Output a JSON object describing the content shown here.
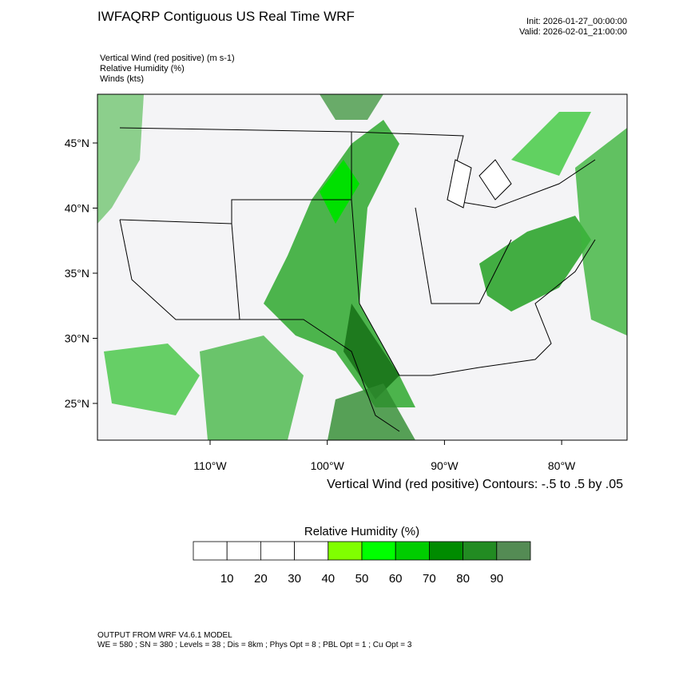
{
  "header": {
    "title": "IWFAQRP Contiguous US Real Time WRF",
    "init": "Init: 2026-01-27_00:00:00",
    "valid": "Valid: 2026-02-01_21:00:00"
  },
  "fields": [
    "Vertical Wind (red positive)   (m s-1)",
    "Relative Humidity   (%)",
    "Winds   (kts)"
  ],
  "map": {
    "lat_ticks": [
      {
        "value": 45,
        "label": "45°N"
      },
      {
        "value": 40,
        "label": "40°N"
      },
      {
        "value": 35,
        "label": "35°N"
      },
      {
        "value": 30,
        "label": "30°N"
      },
      {
        "value": 25,
        "label": "25°N"
      }
    ],
    "lon_ticks": [
      {
        "value": -110,
        "label": "110°W"
      },
      {
        "value": -100,
        "label": "100°W"
      },
      {
        "value": -90,
        "label": "90°W"
      },
      {
        "value": -80,
        "label": "80°W"
      }
    ],
    "contour_note": "Vertical Wind (red positive) Contours: -.5 to .5 by .05"
  },
  "colorbar": {
    "title": "Relative Humidity  (%)",
    "colors": [
      "#ffffff",
      "#ffffff",
      "#ffffff",
      "#ffffff",
      "#80ff00",
      "#00ff00",
      "#00cd00",
      "#008b00",
      "#228b22",
      "#548b54"
    ],
    "labels": [
      10,
      20,
      30,
      40,
      50,
      60,
      70,
      80,
      90
    ]
  },
  "footer": [
    "OUTPUT FROM WRF V4.6.1 MODEL",
    "WE = 580 ; SN = 380 ; Levels = 38 ; Dis = 8km ; Phys Opt = 8 ; PBL Opt = 1 ; Cu Opt = 3"
  ]
}
